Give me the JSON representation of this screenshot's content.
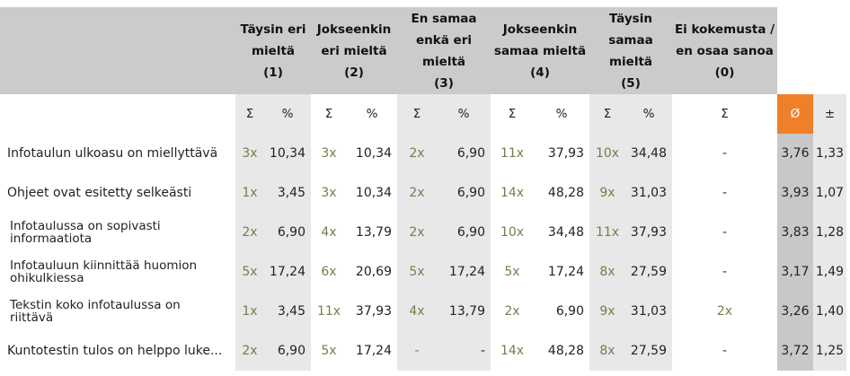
{
  "columns": [
    {
      "lines": [
        "Täysin eri",
        "mieltä",
        "(1)"
      ]
    },
    {
      "lines": [
        "Jokseenkin",
        "eri mieltä",
        "(2)"
      ]
    },
    {
      "lines": [
        "En samaa",
        "enkä eri",
        "mieltä",
        "(3)"
      ]
    },
    {
      "lines": [
        "Jokseenkin",
        "samaa mieltä",
        "(4)"
      ]
    },
    {
      "lines": [
        "Täysin",
        "samaa",
        "mieltä",
        "(5)"
      ]
    },
    {
      "lines": [
        "Ei kokemusta /",
        "en osaa sanoa",
        "(0)"
      ]
    }
  ],
  "sub": {
    "sum": "Σ",
    "pct": "%",
    "avg": "Ø",
    "pm": "±"
  },
  "rows": [
    {
      "label": "Infotaulun ulkoasu on miellyttävä",
      "two_line": false,
      "c1": "3x",
      "p1": "10,34",
      "c2": "3x",
      "p2": "10,34",
      "c3": "2x",
      "p3": "6,90",
      "c4": "11x",
      "p4": "37,93",
      "c5": "10x",
      "p5": "34,48",
      "c0": "-",
      "avg": "3,76",
      "pm": "1,33"
    },
    {
      "label": "Ohjeet ovat esitetty selkeästi",
      "two_line": false,
      "c1": "1x",
      "p1": "3,45",
      "c2": "3x",
      "p2": "10,34",
      "c3": "2x",
      "p3": "6,90",
      "c4": "14x",
      "p4": "48,28",
      "c5": "9x",
      "p5": "31,03",
      "c0": "-",
      "avg": "3,93",
      "pm": "1,07"
    },
    {
      "label": "Infotaulussa on sopivasti",
      "label2": "informaatiota",
      "two_line": true,
      "c1": "2x",
      "p1": "6,90",
      "c2": "4x",
      "p2": "13,79",
      "c3": "2x",
      "p3": "6,90",
      "c4": "10x",
      "p4": "34,48",
      "c5": "11x",
      "p5": "37,93",
      "c0": "-",
      "avg": "3,83",
      "pm": "1,28"
    },
    {
      "label": "Infotauluun kiinnittää huomion",
      "label2": "ohikulkiessa",
      "two_line": true,
      "c1": "5x",
      "p1": "17,24",
      "c2": "6x",
      "p2": "20,69",
      "c3": "5x",
      "p3": "17,24",
      "c4": "5x",
      "p4": "17,24",
      "c5": "8x",
      "p5": "27,59",
      "c0": "-",
      "avg": "3,17",
      "pm": "1,49"
    },
    {
      "label": "Tekstin koko infotaulussa on",
      "label2": "riittävä",
      "two_line": true,
      "c1": "1x",
      "p1": "3,45",
      "c2": "11x",
      "p2": "37,93",
      "c3": "4x",
      "p3": "13,79",
      "c4": "2x",
      "p4": "6,90",
      "c5": "9x",
      "p5": "31,03",
      "c0": "2x",
      "avg": "3,26",
      "pm": "1,40"
    },
    {
      "label": "Kuntotestin tulos on helppo luke...",
      "two_line": false,
      "c1": "2x",
      "p1": "6,90",
      "c2": "5x",
      "p2": "17,24",
      "c3": "-",
      "p3": "-",
      "c4": "14x",
      "p4": "48,28",
      "c5": "8x",
      "p5": "27,59",
      "c0": "-",
      "avg": "3,72",
      "pm": "1,25"
    }
  ],
  "colors": {
    "header_bg": "#cbcbcb",
    "shade": "#e8e8e8",
    "avg_bg": "#c8c8c8",
    "accent": "#f07f2a",
    "count_text": "#7a7a4f"
  }
}
